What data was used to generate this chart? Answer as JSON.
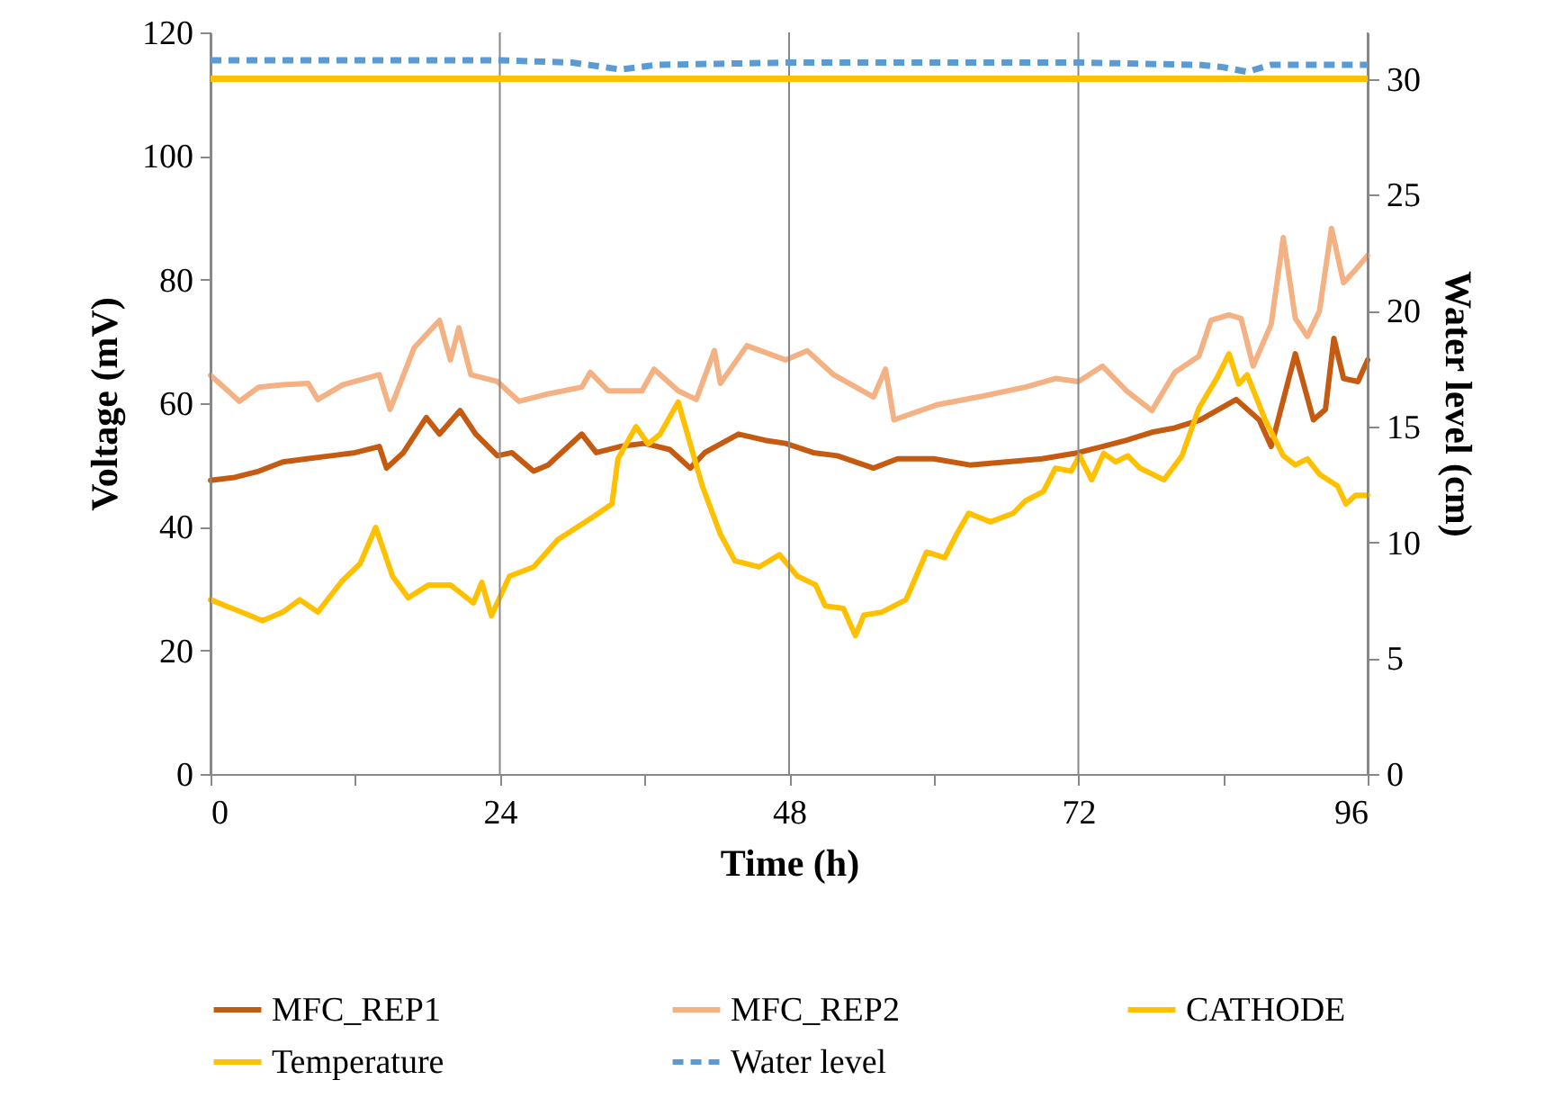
{
  "chart_data": {
    "type": "line",
    "xlabel": "Time (h)",
    "ylabel": "Voltage (mV)",
    "y2label": "Water level (cm)",
    "xlim": [
      0,
      96
    ],
    "xticks": [
      0,
      {
        "value": 12,
        "label": null
      },
      24,
      {
        "value": 36,
        "label": null
      },
      48,
      {
        "value": 60,
        "label": null
      },
      72,
      {
        "value": 84,
        "label": null
      },
      96
    ],
    "ylim": [
      0,
      120
    ],
    "yticks": [
      0,
      20,
      40,
      60,
      80,
      100,
      120
    ],
    "y2lim": [
      0,
      32
    ],
    "y2ticks": [
      0,
      5,
      10,
      15,
      20,
      25,
      30
    ],
    "grid": "x",
    "legend": "bottom",
    "marker": "none",
    "series": [
      {
        "name": "MFC_REP1",
        "color": "#c55a11",
        "line_style": "solid",
        "x": [
          0,
          2,
          4,
          6,
          8,
          10,
          12,
          14,
          14.6,
          16,
          17.9,
          19,
          20.7,
          22,
          23.8,
          25,
          26.8,
          28,
          30.8,
          32,
          34,
          36,
          38.1,
          39.8,
          41,
          43.8,
          46,
          47.7,
          50,
          52,
          55,
          57,
          60,
          63,
          66,
          69,
          72,
          74,
          76,
          78.1,
          80,
          82.1,
          85.1,
          87,
          88,
          90,
          91.5,
          92.5,
          93.2,
          94,
          95.2,
          96
        ],
        "values": [
          47.5,
          48,
          49,
          50.5,
          51,
          51.5,
          52,
          53,
          49.5,
          52,
          57.7,
          55,
          58.8,
          55,
          51.5,
          52,
          49,
          50,
          55,
          52,
          53,
          53.5,
          52.5,
          49.5,
          52,
          55,
          54,
          53.5,
          52,
          51.5,
          49.5,
          51,
          51,
          50,
          50.5,
          51,
          52,
          53,
          54,
          55.3,
          56,
          57.3,
          60.6,
          57.3,
          53,
          68,
          57.3,
          59,
          70.5,
          64,
          63.5,
          67
        ]
      },
      {
        "name": "MFC_REP2",
        "color": "#f4b183",
        "line_style": "solid",
        "x": [
          0,
          2.4,
          4,
          6,
          8.1,
          8.9,
          11,
          14,
          14.9,
          16.9,
          19,
          19.9,
          20.6,
          21.6,
          23.8,
          25.6,
          28,
          30.8,
          31.5,
          33,
          35.8,
          36.8,
          38.8,
          40.3,
          41.8,
          42.3,
          44.5,
          47.7,
          49.5,
          51.7,
          55,
          56,
          56.7,
          60.2,
          64.2,
          67.6,
          70.1,
          72,
          74,
          76,
          78.1,
          80,
          82,
          83,
          84.5,
          85.5,
          86.5,
          88,
          89,
          90,
          91,
          92,
          93,
          94,
          95,
          96
        ],
        "values": [
          64.5,
          60.3,
          62.6,
          63,
          63.2,
          60.6,
          63,
          64.6,
          59,
          69,
          73.4,
          67,
          72.2,
          64.6,
          63.5,
          60.3,
          61.5,
          62.6,
          65,
          62,
          62,
          65.5,
          62,
          60.6,
          68.5,
          63.2,
          69.3,
          67,
          68.5,
          64.6,
          61,
          65.5,
          57.3,
          59.7,
          61.2,
          62.6,
          64,
          63.5,
          66,
          62,
          58.8,
          65,
          67.6,
          73.4,
          74.3,
          73.7,
          66,
          72.8,
          86.8,
          73.7,
          70.8,
          74.9,
          88.3,
          79.5,
          81.6,
          83.9
        ]
      },
      {
        "name": "CATHODE",
        "color": "#ffc000",
        "line_style": "solid",
        "axis": "y2",
        "x": [
          0,
          96
        ],
        "values": [
          30,
          30
        ]
      },
      {
        "name": "Temperature",
        "color": "#ffc000",
        "line_style": "solid",
        "x": [
          0,
          3.2,
          4.3,
          6,
          7.4,
          8.9,
          10.9,
          12.4,
          13.7,
          15.1,
          16.4,
          18.1,
          19.9,
          21.8,
          22.5,
          23.3,
          24.8,
          26.8,
          28.8,
          31.8,
          33.3,
          33.8,
          35.3,
          36.3,
          37.3,
          38.8,
          39.8,
          40.8,
          42.3,
          43.5,
          45.5,
          47.2,
          48.7,
          50.2,
          51,
          52.5,
          53.5,
          54.2,
          55.7,
          57.7,
          59.4,
          60.9,
          61.9,
          62.9,
          64.7,
          66.6,
          67.6,
          69.1,
          70.1,
          71.4,
          72.1,
          73.1,
          74.1,
          75.1,
          76.1,
          77.1,
          79.1,
          80.6,
          82,
          83.5,
          84.5,
          85.3,
          86,
          87.5,
          89,
          90,
          91,
          92,
          93.5,
          94.2,
          95,
          96
        ],
        "values": [
          28.2,
          25.7,
          24.8,
          26.2,
          28.2,
          26.2,
          31.2,
          34,
          39.9,
          32,
          28.5,
          30.6,
          30.6,
          27.7,
          31,
          25.6,
          32,
          33.5,
          37.9,
          41.7,
          43.7,
          51,
          56.2,
          53.4,
          55,
          60.2,
          53.4,
          46.6,
          38.8,
          34.5,
          33.5,
          35.5,
          32,
          30.6,
          27.2,
          26.8,
          22.4,
          25.7,
          26.2,
          28.2,
          35.9,
          35,
          38.8,
          42.2,
          40.8,
          42.2,
          44.2,
          45.7,
          49.5,
          49,
          51.5,
          47.6,
          51.9,
          50.5,
          51.5,
          49.5,
          47.6,
          51.5,
          59.2,
          64.1,
          68,
          63.1,
          64.6,
          57.3,
          51.5,
          50,
          51,
          48.5,
          46.6,
          43.7,
          45.1,
          45.1
        ]
      },
      {
        "name": "Water level",
        "color": "#5b9bd5",
        "line_style": "dashed",
        "axis": "y2",
        "x": [
          0,
          10,
          20,
          24,
          30,
          34,
          37,
          48,
          60,
          72,
          82,
          84,
          86,
          88,
          96
        ],
        "values": [
          30.8,
          30.8,
          30.8,
          30.8,
          30.7,
          30.4,
          30.6,
          30.7,
          30.7,
          30.7,
          30.6,
          30.5,
          30.3,
          30.6,
          30.6
        ]
      }
    ]
  }
}
